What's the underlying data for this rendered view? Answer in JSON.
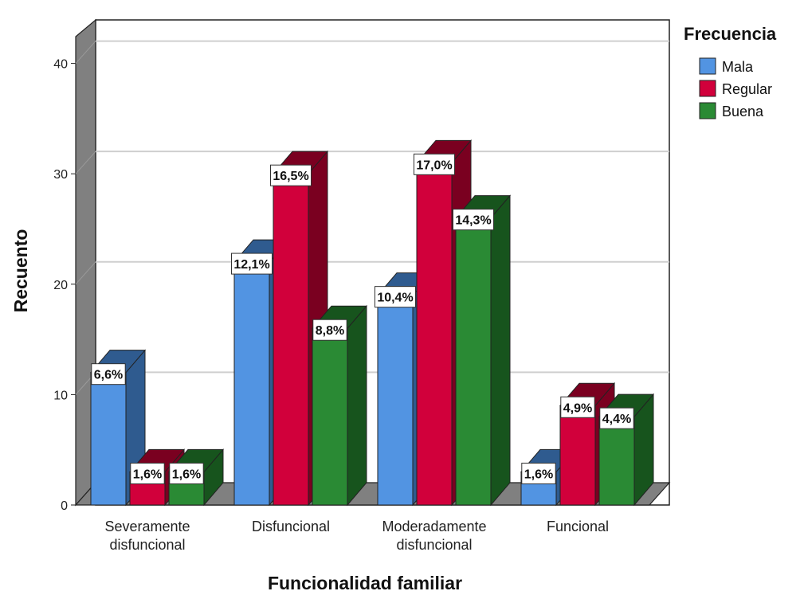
{
  "chart_data": {
    "type": "bar",
    "title": "",
    "xlabel": "Funcionalidad familiar",
    "ylabel": "Recuento",
    "categories": [
      [
        "Severamente",
        "disfuncional"
      ],
      [
        "Disfuncional"
      ],
      [
        "Moderadamente",
        "disfuncional"
      ],
      [
        "Funcional"
      ]
    ],
    "legend_title": "Frecuencia",
    "legend_position": "top-right",
    "ylim": [
      0,
      43
    ],
    "yticks": [
      "0",
      "10",
      "20",
      "30",
      "40"
    ],
    "grid": true,
    "three_d": true,
    "series": [
      {
        "name": "Mala",
        "color": "#5294e2",
        "side_color": "#2f5b8f",
        "values": [
          12,
          22,
          19,
          3
        ],
        "labels": [
          "6,6%",
          "12,1%",
          "10,4%",
          "1,6%"
        ]
      },
      {
        "name": "Regular",
        "color": "#d1003b",
        "side_color": "#7a0020",
        "values": [
          3,
          30,
          31,
          9
        ],
        "labels": [
          "1,6%",
          "16,5%",
          "17,0%",
          "4,9%"
        ]
      },
      {
        "name": "Buena",
        "color": "#2a8a34",
        "side_color": "#17541d",
        "values": [
          3,
          16,
          26,
          8
        ],
        "labels": [
          "1,6%",
          "8,8%",
          "14,3%",
          "4,4%"
        ]
      }
    ]
  }
}
